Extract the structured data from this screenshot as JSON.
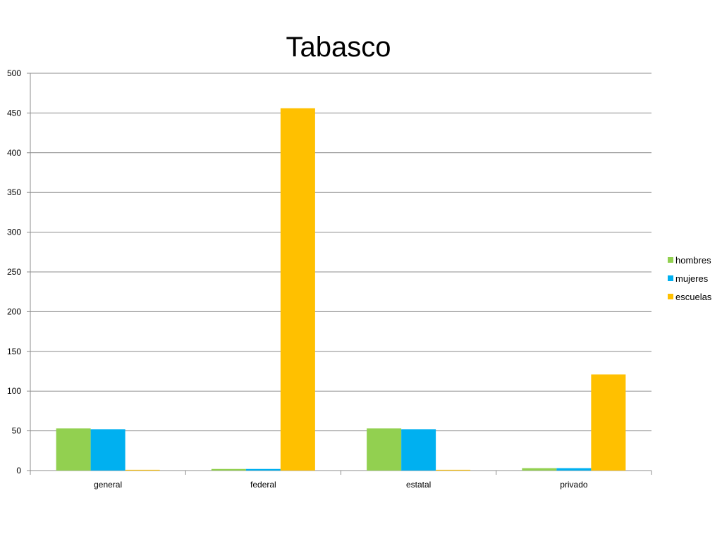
{
  "chart_data": {
    "type": "bar",
    "title": "Tabasco",
    "categories": [
      "general",
      "federal",
      "estatal",
      "privado"
    ],
    "series": [
      {
        "name": "hombres",
        "values": [
          53,
          2,
          53,
          3
        ],
        "color": "#92D050"
      },
      {
        "name": "mujeres",
        "values": [
          52,
          2,
          52,
          3
        ],
        "color": "#00B0F0"
      },
      {
        "name": "escuelas",
        "values": [
          1,
          456,
          1,
          121
        ],
        "color": "#FFC000"
      }
    ],
    "ylim": [
      0,
      500
    ],
    "yticks": [
      0,
      50,
      100,
      150,
      200,
      250,
      300,
      350,
      400,
      450,
      500
    ],
    "grid": true,
    "legend_position": "right"
  }
}
